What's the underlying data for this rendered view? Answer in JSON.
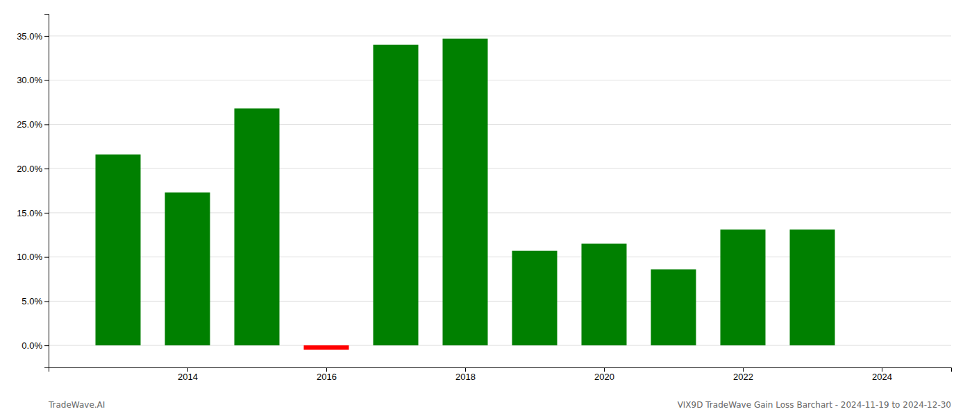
{
  "chart_data": {
    "type": "bar",
    "x": [
      2013,
      2014,
      2015,
      2016,
      2017,
      2018,
      2019,
      2020,
      2021,
      2022,
      2023
    ],
    "values": [
      0.216,
      0.173,
      0.268,
      -0.005,
      0.34,
      0.347,
      0.107,
      0.115,
      0.086,
      0.131,
      0.131
    ],
    "colors": [
      "#008000",
      "#008000",
      "#008000",
      "#ff0000",
      "#008000",
      "#008000",
      "#008000",
      "#008000",
      "#008000",
      "#008000",
      "#008000"
    ],
    "xlim": [
      2012.0,
      2025.0
    ],
    "xticks": [
      2014,
      2016,
      2018,
      2020,
      2022,
      2024
    ],
    "ylim": [
      -0.025,
      0.375
    ],
    "yticks": [
      {
        "value": 0.0,
        "label": "0.0%"
      },
      {
        "value": 0.05,
        "label": "5.0%"
      },
      {
        "value": 0.1,
        "label": "10.0%"
      },
      {
        "value": 0.15,
        "label": "15.0%"
      },
      {
        "value": 0.2,
        "label": "20.0%"
      },
      {
        "value": 0.25,
        "label": "25.0%"
      },
      {
        "value": 0.3,
        "label": "30.0%"
      },
      {
        "value": 0.35,
        "label": "35.0%"
      }
    ],
    "grid": true,
    "annotations": [
      "TradeWave.AI",
      "VIX9D TradeWave Gain Loss Barchart - 2024-11-19 to 2024-12-30"
    ]
  }
}
